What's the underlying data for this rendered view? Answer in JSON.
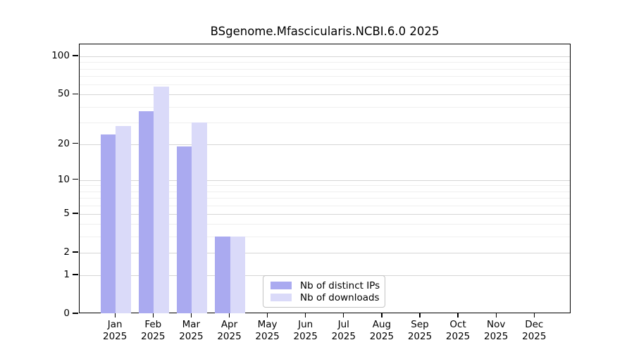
{
  "chart_data": {
    "type": "bar",
    "title": "BSgenome.Mfascicularis.NCBI.6.0 2025",
    "categories": [
      "Jan",
      "Feb",
      "Mar",
      "Apr",
      "May",
      "Jun",
      "Jul",
      "Aug",
      "Sep",
      "Oct",
      "Nov",
      "Dec"
    ],
    "x_tick_year_line": "2025",
    "series": [
      {
        "name": "Nb of distinct IPs",
        "color": "#aaaaf0",
        "values": [
          24,
          37,
          19,
          3,
          0,
          0,
          0,
          0,
          0,
          0,
          0,
          0
        ]
      },
      {
        "name": "Nb of downloads",
        "color": "#dadaf9",
        "values": [
          28,
          58,
          30,
          3,
          0,
          0,
          0,
          0,
          0,
          0,
          0,
          0
        ]
      }
    ],
    "yscale": "log1p",
    "y_ticks": [
      0,
      1,
      2,
      5,
      10,
      20,
      50,
      100
    ],
    "y_minor_gridlines": [
      3,
      4,
      6,
      7,
      8,
      9,
      30,
      40,
      60,
      70,
      80,
      90
    ],
    "ylim": [
      0,
      124
    ],
    "grid": true,
    "legend_position": "bottom-center",
    "colors": {
      "major_grid": "#d6d6d6",
      "minor_grid": "#efefef",
      "axis": "#000000",
      "legend_border": "#c3c3c3",
      "background": "#ffffff"
    }
  }
}
